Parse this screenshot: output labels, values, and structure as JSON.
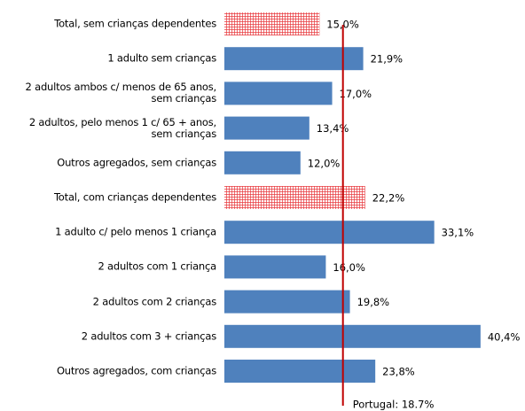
{
  "chart_data": {
    "type": "bar",
    "orientation": "horizontal",
    "categories": [
      "Total, sem crianças dependentes",
      "1 adulto sem crianças",
      "2 adultos ambos c/ menos de 65 anos,\nsem crianças",
      "2 adultos, pelo menos 1 c/ 65 + anos,\nsem crianças",
      "Outros agregados, sem crianças",
      "Total, com crianças dependentes",
      "1 adulto c/ pelo menos 1 criança",
      "2 adultos com 1 criança",
      "2 adultos com 2 crianças",
      "2 adultos com 3 + crianças",
      "Outros agregados, com crianças"
    ],
    "values": [
      15.0,
      21.9,
      17.0,
      13.4,
      12.0,
      22.2,
      33.1,
      16.0,
      19.8,
      40.4,
      23.8
    ],
    "value_labels": [
      "15,0%",
      "21,9%",
      "17,0%",
      "13,4%",
      "12,0%",
      "22,2%",
      "33,1%",
      "16,0%",
      "19,8%",
      "40,4%",
      "23,8%"
    ],
    "color": "#4f81bd",
    "highlight_color": "#e8383d",
    "highlighted": [
      0,
      5
    ],
    "reference_line": {
      "value": 18.7,
      "label": "Portugal: 18.7%",
      "color": "#c00000"
    }
  }
}
